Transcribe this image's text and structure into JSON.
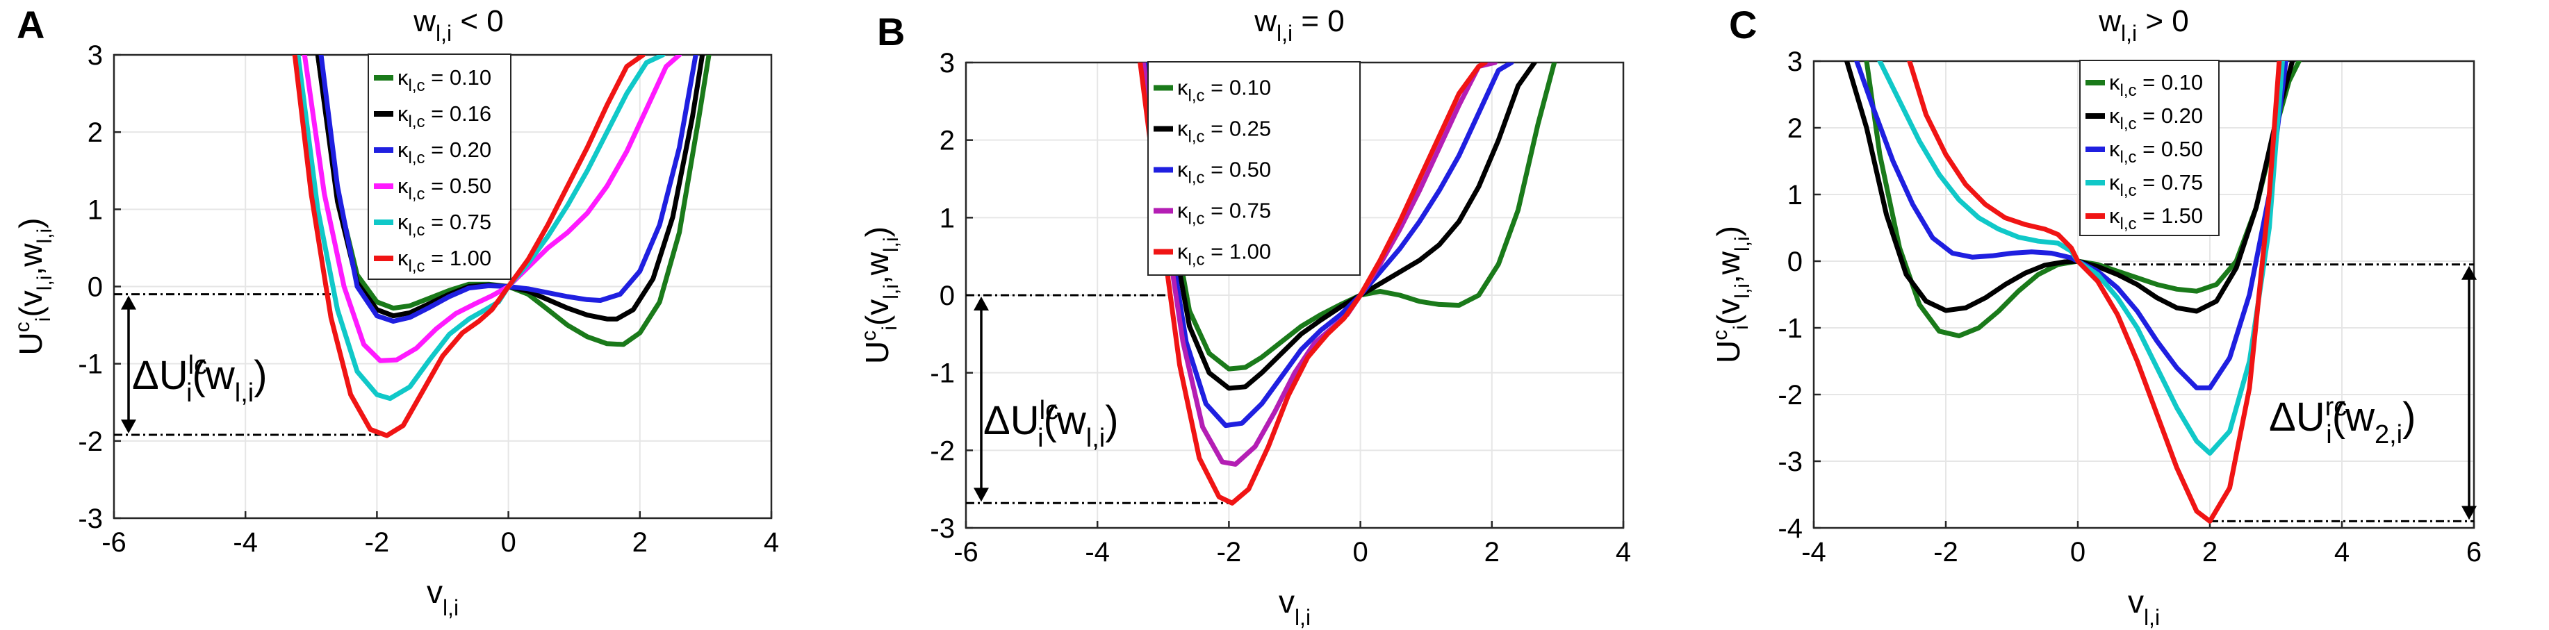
{
  "figure": {
    "panel_letters": [
      "A",
      "B",
      "C"
    ]
  },
  "chart_data": [
    {
      "type": "line",
      "panel": "A",
      "title": {
        "base": "w",
        "sub": "l,i",
        "rest": " < 0"
      },
      "xlabel": {
        "base": "v",
        "sub": "l,i"
      },
      "ylabel": {
        "base": "U",
        "sup": "c",
        "sub2": "i",
        "args": "(v",
        "arg1sub": "l,i",
        "sep": ",w",
        "arg2sub": "l,i",
        "close": ")"
      },
      "xlim": [
        -6,
        4
      ],
      "ylim": [
        -3,
        3
      ],
      "xticks": [
        -6,
        -4,
        -2,
        0,
        2,
        4
      ],
      "yticks": [
        -3,
        -2,
        -1,
        0,
        1,
        2,
        3
      ],
      "grid": true,
      "legend": {
        "position": "top",
        "symbol": "κ",
        "sub": "l,c"
      },
      "annotation": {
        "base": "ΔU",
        "sup": "lc",
        "sub": "i",
        "arg": "(w",
        "argsub": "l,i",
        "close": ")"
      },
      "reference_lines": {
        "upper_y": -0.1,
        "lower_y": -1.92,
        "x_from": -6
      },
      "series": [
        {
          "name": "= 0.10",
          "color": "#1a7a1a",
          "x": [
            -2.9,
            -2.6,
            -2.3,
            -2.0,
            -1.75,
            -1.5,
            -1.2,
            -0.9,
            -0.6,
            -0.3,
            0.0,
            0.3,
            0.6,
            0.9,
            1.2,
            1.5,
            1.75,
            2.0,
            2.3,
            2.6,
            2.9,
            3.05
          ],
          "y": [
            3.0,
            1.2,
            0.15,
            -0.2,
            -0.28,
            -0.25,
            -0.15,
            -0.05,
            0.03,
            0.03,
            0.0,
            -0.1,
            -0.3,
            -0.5,
            -0.65,
            -0.74,
            -0.75,
            -0.6,
            -0.2,
            0.7,
            2.2,
            3.0
          ]
        },
        {
          "name": "= 0.16",
          "color": "#000000",
          "x": [
            -2.9,
            -2.6,
            -2.3,
            -2.0,
            -1.75,
            -1.5,
            -1.2,
            -0.9,
            -0.6,
            -0.3,
            0.0,
            0.3,
            0.6,
            0.9,
            1.2,
            1.5,
            1.65,
            1.9,
            2.2,
            2.5,
            2.8,
            2.95
          ],
          "y": [
            3.0,
            1.1,
            0.05,
            -0.3,
            -0.38,
            -0.34,
            -0.22,
            -0.1,
            0.0,
            0.02,
            0.0,
            -0.06,
            -0.17,
            -0.28,
            -0.37,
            -0.42,
            -0.42,
            -0.3,
            0.1,
            0.9,
            2.2,
            3.0
          ]
        },
        {
          "name": "= 0.20",
          "color": "#1f1fe0",
          "x": [
            -2.85,
            -2.6,
            -2.3,
            -2.0,
            -1.75,
            -1.5,
            -1.2,
            -0.9,
            -0.6,
            -0.3,
            0.0,
            0.3,
            0.6,
            0.9,
            1.2,
            1.4,
            1.7,
            2.0,
            2.3,
            2.6,
            2.85
          ],
          "y": [
            3.0,
            1.3,
            0.0,
            -0.38,
            -0.45,
            -0.4,
            -0.27,
            -0.13,
            -0.02,
            0.01,
            0.0,
            -0.03,
            -0.08,
            -0.13,
            -0.17,
            -0.18,
            -0.1,
            0.2,
            0.8,
            1.8,
            3.0
          ]
        },
        {
          "name": "= 0.50",
          "color": "#ff1aff",
          "x": [
            -3.1,
            -2.8,
            -2.5,
            -2.2,
            -1.95,
            -1.7,
            -1.4,
            -1.1,
            -0.8,
            -0.5,
            -0.25,
            0.0,
            0.3,
            0.6,
            0.9,
            1.2,
            1.5,
            1.8,
            2.1,
            2.4,
            2.6
          ],
          "y": [
            3.0,
            1.2,
            0.0,
            -0.75,
            -0.96,
            -0.95,
            -0.8,
            -0.55,
            -0.35,
            -0.22,
            -0.12,
            0.0,
            0.25,
            0.5,
            0.7,
            0.95,
            1.3,
            1.75,
            2.3,
            2.85,
            3.0
          ]
        },
        {
          "name": "= 0.75",
          "color": "#10c8c8",
          "x": [
            -3.2,
            -2.9,
            -2.6,
            -2.3,
            -2.0,
            -1.8,
            -1.5,
            -1.2,
            -0.9,
            -0.6,
            -0.35,
            -0.15,
            0.0,
            0.3,
            0.6,
            0.9,
            1.2,
            1.5,
            1.8,
            2.1,
            2.35
          ],
          "y": [
            3.0,
            1.0,
            -0.3,
            -1.1,
            -1.4,
            -1.45,
            -1.3,
            -0.95,
            -0.62,
            -0.42,
            -0.3,
            -0.2,
            0.0,
            0.3,
            0.65,
            1.05,
            1.5,
            2.0,
            2.5,
            2.9,
            3.0
          ]
        },
        {
          "name": "= 1.00",
          "color": "#f01414",
          "x": [
            -3.25,
            -3.0,
            -2.7,
            -2.4,
            -2.1,
            -1.85,
            -1.6,
            -1.3,
            -1.0,
            -0.7,
            -0.45,
            -0.25,
            0.0,
            0.3,
            0.6,
            0.9,
            1.2,
            1.5,
            1.8,
            2.05
          ],
          "y": [
            3.0,
            1.2,
            -0.4,
            -1.4,
            -1.85,
            -1.93,
            -1.8,
            -1.35,
            -0.9,
            -0.6,
            -0.45,
            -0.3,
            0.0,
            0.35,
            0.8,
            1.3,
            1.8,
            2.35,
            2.85,
            3.0
          ]
        }
      ]
    },
    {
      "type": "line",
      "panel": "B",
      "title": {
        "base": "w",
        "sub": "l,i",
        "rest": " = 0"
      },
      "xlabel": {
        "base": "v",
        "sub": "l,i"
      },
      "ylabel": {
        "base": "U",
        "sup": "c",
        "sub2": "i",
        "args": "(v",
        "arg1sub": "l,i",
        "sep": ",w",
        "arg2sub": "l,i",
        "close": ")"
      },
      "xlim": [
        -6,
        4
      ],
      "ylim": [
        -3,
        3
      ],
      "xticks": [
        -6,
        -4,
        -2,
        0,
        2,
        4
      ],
      "yticks": [
        -3,
        -2,
        -1,
        0,
        1,
        2,
        3
      ],
      "grid": true,
      "legend": {
        "position": "top",
        "symbol": "κ",
        "sub": "l,c"
      },
      "annotation": {
        "base": "ΔU",
        "sup": "lc",
        "sub": "i",
        "arg": "(w",
        "argsub": "l,i",
        "close": ")"
      },
      "reference_lines": {
        "upper_y": 0.0,
        "lower_y": -2.68,
        "x_from": -6
      },
      "series": [
        {
          "name": "= 0.10",
          "color": "#1a7a1a",
          "x": [
            -3.2,
            -2.9,
            -2.6,
            -2.3,
            -2.0,
            -1.75,
            -1.5,
            -1.2,
            -0.9,
            -0.6,
            -0.3,
            0.0,
            0.3,
            0.6,
            0.9,
            1.2,
            1.5,
            1.8,
            2.1,
            2.4,
            2.7,
            2.95
          ],
          "y": [
            3.0,
            1.2,
            -0.2,
            -0.75,
            -0.95,
            -0.93,
            -0.8,
            -0.6,
            -0.4,
            -0.25,
            -0.12,
            0.0,
            0.05,
            0.0,
            -0.08,
            -0.12,
            -0.13,
            0.0,
            0.4,
            1.1,
            2.2,
            3.0
          ]
        },
        {
          "name": "= 0.25",
          "color": "#000000",
          "x": [
            -3.2,
            -2.9,
            -2.6,
            -2.3,
            -2.0,
            -1.75,
            -1.5,
            -1.2,
            -0.9,
            -0.6,
            -0.3,
            0.0,
            0.3,
            0.6,
            0.9,
            1.2,
            1.5,
            1.8,
            2.1,
            2.4,
            2.65
          ],
          "y": [
            3.0,
            1.0,
            -0.4,
            -1.0,
            -1.2,
            -1.18,
            -1.0,
            -0.75,
            -0.5,
            -0.32,
            -0.15,
            0.0,
            0.15,
            0.3,
            0.45,
            0.65,
            0.95,
            1.4,
            2.0,
            2.7,
            3.0
          ]
        },
        {
          "name": "= 0.50",
          "color": "#1f1fe0",
          "x": [
            -3.25,
            -2.95,
            -2.65,
            -2.35,
            -2.05,
            -1.8,
            -1.5,
            -1.2,
            -0.9,
            -0.6,
            -0.3,
            0.0,
            0.3,
            0.6,
            0.9,
            1.2,
            1.5,
            1.8,
            2.1,
            2.3
          ],
          "y": [
            3.0,
            1.0,
            -0.6,
            -1.4,
            -1.68,
            -1.65,
            -1.4,
            -1.05,
            -0.7,
            -0.45,
            -0.25,
            0.0,
            0.3,
            0.6,
            0.95,
            1.35,
            1.8,
            2.35,
            2.9,
            3.0
          ]
        },
        {
          "name": "= 0.75",
          "color": "#b41eb4",
          "x": [
            -3.3,
            -3.0,
            -2.7,
            -2.4,
            -2.1,
            -1.9,
            -1.6,
            -1.3,
            -1.0,
            -0.7,
            -0.4,
            -0.2,
            0.0,
            0.3,
            0.6,
            0.9,
            1.2,
            1.5,
            1.8,
            2.05
          ],
          "y": [
            3.0,
            1.1,
            -0.6,
            -1.7,
            -2.15,
            -2.18,
            -1.95,
            -1.5,
            -1.0,
            -0.62,
            -0.4,
            -0.25,
            0.0,
            0.4,
            0.85,
            1.35,
            1.9,
            2.45,
            2.95,
            3.0
          ]
        },
        {
          "name": "= 1.00",
          "color": "#f01414",
          "x": [
            -3.35,
            -3.05,
            -2.75,
            -2.45,
            -2.15,
            -1.95,
            -1.7,
            -1.4,
            -1.1,
            -0.8,
            -0.5,
            -0.25,
            0.0,
            0.3,
            0.6,
            0.9,
            1.2,
            1.5,
            1.8,
            1.9
          ],
          "y": [
            3.0,
            1.0,
            -0.9,
            -2.1,
            -2.6,
            -2.68,
            -2.5,
            -1.95,
            -1.3,
            -0.8,
            -0.5,
            -0.3,
            0.0,
            0.45,
            0.95,
            1.5,
            2.05,
            2.6,
            2.95,
            3.0
          ]
        }
      ]
    },
    {
      "type": "line",
      "panel": "C",
      "title": {
        "base": "w",
        "sub": "l,i",
        "rest": " > 0"
      },
      "xlabel": {
        "base": "v",
        "sub": "l,i"
      },
      "ylabel": {
        "base": "U",
        "sup": "c",
        "sub2": "i",
        "args": "(v",
        "arg1sub": "l,i",
        "sep": ",w",
        "arg2sub": "l,i",
        "close": ")"
      },
      "xlim": [
        -4,
        6
      ],
      "ylim": [
        -4,
        3
      ],
      "xticks": [
        -4,
        -2,
        0,
        2,
        4,
        6
      ],
      "yticks": [
        -4,
        -3,
        -2,
        -1,
        0,
        1,
        2,
        3
      ],
      "grid": true,
      "legend": {
        "position": "top",
        "symbol": "κ",
        "sub": "l,c"
      },
      "annotation": {
        "base": "ΔU",
        "sup": "rc",
        "sub": "i",
        "arg": "(w",
        "argsub": "2,i",
        "close": ")"
      },
      "reference_lines": {
        "upper_y": -0.05,
        "lower_y": -3.9,
        "x_to": 6
      },
      "series": [
        {
          "name": "= 0.10",
          "color": "#1a7a1a",
          "x": [
            -3.2,
            -3.0,
            -2.7,
            -2.4,
            -2.1,
            -1.8,
            -1.5,
            -1.2,
            -0.9,
            -0.6,
            -0.3,
            0.0,
            0.3,
            0.6,
            0.9,
            1.2,
            1.5,
            1.8,
            2.1,
            2.4,
            2.7,
            3.0,
            3.2,
            3.35
          ],
          "y": [
            3.0,
            1.6,
            0.2,
            -0.65,
            -1.05,
            -1.12,
            -1.0,
            -0.75,
            -0.45,
            -0.2,
            -0.05,
            0.0,
            -0.05,
            -0.15,
            -0.25,
            -0.35,
            -0.42,
            -0.45,
            -0.35,
            0.0,
            0.8,
            2.0,
            2.7,
            3.0
          ]
        },
        {
          "name": "= 0.20",
          "color": "#000000",
          "x": [
            -3.5,
            -3.2,
            -2.9,
            -2.6,
            -2.3,
            -2.0,
            -1.7,
            -1.4,
            -1.1,
            -0.8,
            -0.5,
            -0.2,
            0.0,
            0.3,
            0.6,
            0.9,
            1.2,
            1.5,
            1.8,
            2.1,
            2.4,
            2.7,
            3.0,
            3.25
          ],
          "y": [
            3.0,
            2.0,
            0.7,
            -0.2,
            -0.6,
            -0.74,
            -0.7,
            -0.55,
            -0.35,
            -0.18,
            -0.06,
            -0.01,
            0.0,
            -0.08,
            -0.2,
            -0.35,
            -0.55,
            -0.7,
            -0.75,
            -0.6,
            -0.1,
            0.8,
            2.1,
            3.0
          ]
        },
        {
          "name": "= 0.50",
          "color": "#1f1fe0",
          "x": [
            -3.35,
            -3.1,
            -2.8,
            -2.5,
            -2.2,
            -1.9,
            -1.6,
            -1.3,
            -1.0,
            -0.7,
            -0.4,
            -0.1,
            0.0,
            0.3,
            0.6,
            0.9,
            1.2,
            1.5,
            1.8,
            2.0,
            2.3,
            2.6,
            2.9,
            3.15
          ],
          "y": [
            3.0,
            2.3,
            1.5,
            0.85,
            0.35,
            0.12,
            0.06,
            0.08,
            0.12,
            0.14,
            0.12,
            0.05,
            0.0,
            -0.15,
            -0.4,
            -0.75,
            -1.2,
            -1.6,
            -1.9,
            -1.9,
            -1.45,
            -0.5,
            1.0,
            3.0
          ]
        },
        {
          "name": "= 0.75",
          "color": "#10c8c8",
          "x": [
            -3.0,
            -2.7,
            -2.4,
            -2.1,
            -1.8,
            -1.5,
            -1.2,
            -0.9,
            -0.6,
            -0.3,
            -0.1,
            0.0,
            0.3,
            0.6,
            0.9,
            1.2,
            1.5,
            1.8,
            2.0,
            2.3,
            2.6,
            2.9,
            3.1
          ],
          "y": [
            3.0,
            2.4,
            1.8,
            1.3,
            0.92,
            0.65,
            0.48,
            0.36,
            0.3,
            0.27,
            0.15,
            0.0,
            -0.2,
            -0.55,
            -1.0,
            -1.6,
            -2.2,
            -2.7,
            -2.88,
            -2.55,
            -1.5,
            0.5,
            3.0
          ]
        },
        {
          "name": "= 1.50",
          "color": "#f01414",
          "x": [
            -2.55,
            -2.3,
            -2.0,
            -1.7,
            -1.4,
            -1.1,
            -0.8,
            -0.5,
            -0.3,
            -0.1,
            0.0,
            0.3,
            0.6,
            0.9,
            1.2,
            1.5,
            1.8,
            2.0,
            2.3,
            2.6,
            2.9,
            3.05
          ],
          "y": [
            3.0,
            2.2,
            1.6,
            1.15,
            0.85,
            0.65,
            0.55,
            0.48,
            0.4,
            0.2,
            0.0,
            -0.3,
            -0.8,
            -1.5,
            -2.3,
            -3.1,
            -3.75,
            -3.9,
            -3.4,
            -1.9,
            1.0,
            3.0
          ]
        }
      ]
    }
  ]
}
